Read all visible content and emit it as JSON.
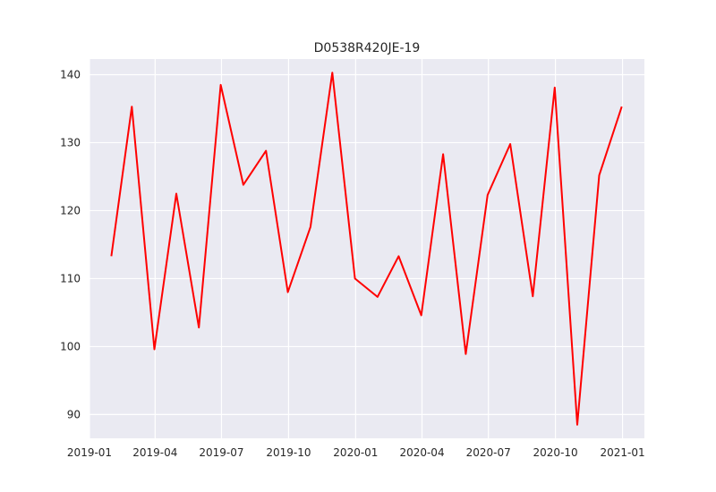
{
  "chart_data": {
    "type": "line",
    "title": "D0538R420JE-19",
    "xlabel": "",
    "ylabel": "",
    "x": [
      "2019-01-31",
      "2019-02-28",
      "2019-03-31",
      "2019-04-30",
      "2019-05-31",
      "2019-06-30",
      "2019-07-31",
      "2019-08-31",
      "2019-09-30",
      "2019-10-31",
      "2019-11-30",
      "2019-12-31",
      "2020-01-31",
      "2020-02-29",
      "2020-03-31",
      "2020-04-30",
      "2020-05-31",
      "2020-06-30",
      "2020-07-31",
      "2020-08-31",
      "2020-09-30",
      "2020-10-31",
      "2020-11-30",
      "2020-12-31"
    ],
    "series": [
      {
        "values": [
          113.3,
          135.3,
          99.6,
          122.5,
          102.8,
          138.5,
          123.8,
          128.8,
          108.0,
          117.6,
          140.3,
          110.0,
          107.3,
          113.3,
          104.6,
          128.3,
          98.9,
          122.3,
          129.8,
          107.4,
          138.1,
          88.5,
          125.2,
          135.3
        ]
      }
    ],
    "xticks": [
      "2019-01",
      "2019-04",
      "2019-07",
      "2019-10",
      "2020-01",
      "2020-04",
      "2020-07",
      "2020-10",
      "2021-01"
    ],
    "xlim": [
      "2019-01-01",
      "2021-01-31"
    ],
    "yticks": [
      90,
      100,
      110,
      120,
      130,
      140
    ],
    "ylim": [
      86.5,
      142.3
    ],
    "grid": true,
    "colors": {
      "line": "#ff0000",
      "plot_bg": "#eaeaf2",
      "grid": "#ffffff"
    }
  }
}
